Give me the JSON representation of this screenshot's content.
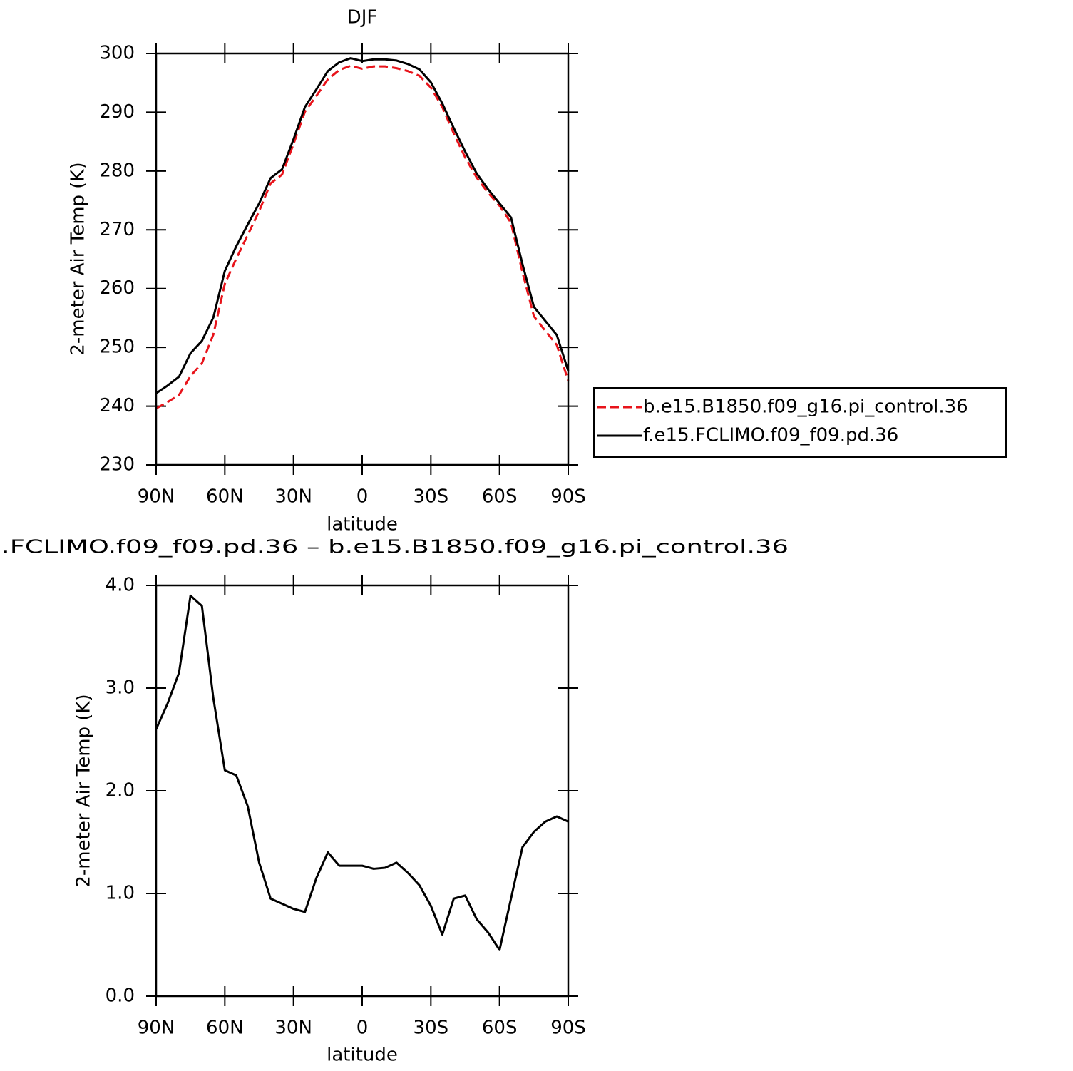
{
  "chart_data": [
    {
      "type": "line",
      "title": "DJF",
      "xlabel": "latitude",
      "ylabel": "2-meter Air Temp (K)",
      "x": [
        90,
        85,
        80,
        75,
        70,
        65,
        60,
        55,
        50,
        45,
        40,
        35,
        30,
        25,
        20,
        15,
        10,
        5,
        0,
        -5,
        -10,
        -15,
        -20,
        -25,
        -30,
        -35,
        -40,
        -45,
        -50,
        -55,
        -60,
        -65,
        -70,
        -75,
        -80,
        -85,
        -90
      ],
      "xlim": [
        90,
        -90
      ],
      "xticks": [
        {
          "value": 90,
          "label": "90N"
        },
        {
          "value": 60,
          "label": "60N"
        },
        {
          "value": 30,
          "label": "30N"
        },
        0,
        {
          "value": -30,
          "label": "30S"
        },
        {
          "value": -60,
          "label": "60S"
        },
        {
          "value": -90,
          "label": "90S"
        }
      ],
      "ylim": [
        230,
        300
      ],
      "yticks": [
        230,
        240,
        250,
        260,
        270,
        280,
        290,
        300
      ],
      "legend": "outside-right",
      "series": [
        {
          "name": "b.e15.B1850.f09_g16.pi_control.36",
          "color": "#e8141b",
          "dashed": true,
          "values": [
            239.6,
            240.7,
            241.9,
            245.1,
            247.3,
            252.2,
            260.8,
            265.1,
            269.1,
            273.2,
            277.9,
            279.4,
            284.6,
            290.1,
            292.8,
            295.6,
            297.2,
            297.9,
            297.4,
            297.8,
            297.8,
            297.5,
            297.0,
            296.2,
            294.2,
            290.9,
            286.4,
            282.3,
            278.9,
            276.3,
            274.1,
            271.2,
            262.8,
            255.3,
            252.8,
            250.4,
            244.3
          ]
        },
        {
          "name": "f.e15.FCLIMO.f09_f09.pd.36",
          "color": "#000000",
          "dashed": false,
          "values": [
            242.2,
            243.5,
            245.0,
            249.0,
            251.1,
            255.1,
            263.0,
            267.2,
            270.9,
            274.5,
            278.8,
            280.3,
            285.4,
            290.9,
            293.9,
            297.0,
            298.5,
            299.2,
            298.7,
            299.0,
            299.0,
            298.8,
            298.2,
            297.3,
            295.1,
            291.5,
            287.3,
            283.3,
            279.6,
            276.9,
            274.5,
            272.1,
            264.2,
            256.9,
            254.5,
            252.1,
            246.0
          ]
        }
      ]
    },
    {
      "type": "line",
      "title": ".FCLIMO.f09_f09.pd.36 – b.e15.B1850.f09_g16.pi_control.36",
      "xlabel": "latitude",
      "ylabel": "2-meter Air Temp (K)",
      "x": [
        90,
        85,
        80,
        75,
        70,
        65,
        60,
        55,
        50,
        45,
        40,
        35,
        30,
        25,
        20,
        15,
        10,
        5,
        0,
        -5,
        -10,
        -15,
        -20,
        -25,
        -30,
        -35,
        -40,
        -45,
        -50,
        -55,
        -60,
        -65,
        -70,
        -75,
        -80,
        -85,
        -90
      ],
      "xlim": [
        90,
        -90
      ],
      "xticks": [
        {
          "value": 90,
          "label": "90N"
        },
        {
          "value": 60,
          "label": "60N"
        },
        {
          "value": 30,
          "label": "30N"
        },
        0,
        {
          "value": -30,
          "label": "30S"
        },
        {
          "value": -60,
          "label": "60S"
        },
        {
          "value": -90,
          "label": "90S"
        }
      ],
      "ylim": [
        0,
        4
      ],
      "yticks": [
        {
          "value": 0,
          "label": "0.0"
        },
        {
          "value": 1,
          "label": "1.0"
        },
        {
          "value": 2,
          "label": "2.0"
        },
        {
          "value": 3,
          "label": "3.0"
        },
        {
          "value": 4,
          "label": "4.0"
        }
      ],
      "color": "#000000",
      "values": [
        2.6,
        2.85,
        3.15,
        3.9,
        3.8,
        2.9,
        2.2,
        2.15,
        1.85,
        1.3,
        0.95,
        0.9,
        0.85,
        0.82,
        1.15,
        1.4,
        1.27,
        1.27,
        1.27,
        1.24,
        1.25,
        1.3,
        1.2,
        1.08,
        0.88,
        0.6,
        0.95,
        0.98,
        0.75,
        0.62,
        0.45,
        0.95,
        1.45,
        1.6,
        1.7,
        1.75,
        1.7
      ]
    }
  ]
}
